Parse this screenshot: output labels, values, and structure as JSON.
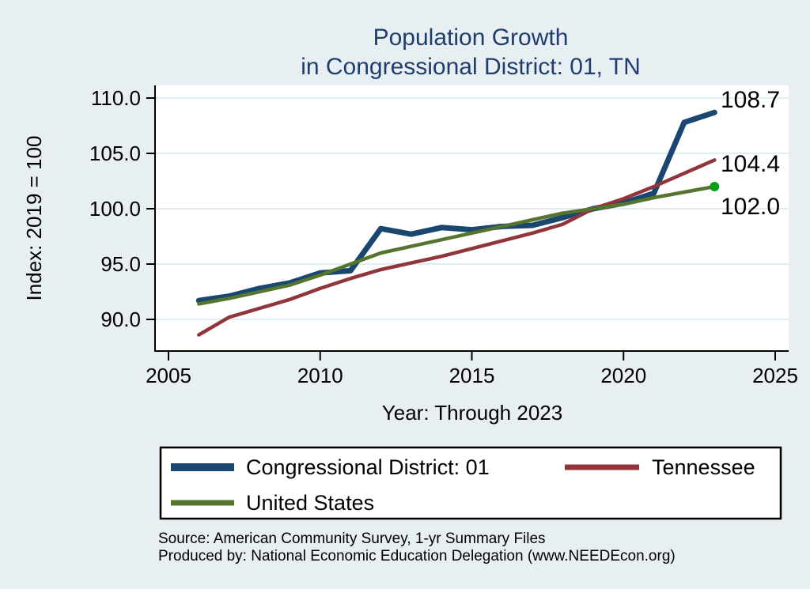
{
  "title": {
    "line1": "Population Growth",
    "line2": "in Congressional District: 01, TN"
  },
  "axes": {
    "y_title": "Index: 2019 = 100",
    "x_title": "Year: Through 2023"
  },
  "colors": {
    "page_background": "#e8eff3",
    "plot_background": "#ffffff",
    "gridline": "#e2edf3",
    "axis_line": "#000000",
    "title_text": "#1f3d6d",
    "district_line": "#1a476f",
    "tennessee_line": "#90353b",
    "us_line": "#55752f",
    "us_end_marker": "#0e9c1a"
  },
  "legend": {
    "items": [
      {
        "label": "Congressional District: 01",
        "color": "#1a476f",
        "thickness": 10
      },
      {
        "label": "Tennessee",
        "color": "#90353b",
        "thickness": 7
      },
      {
        "label": "United States",
        "color": "#55752f",
        "thickness": 7
      }
    ]
  },
  "footer": {
    "line1": "Source: American Community Survey, 1-yr Summary Files",
    "line2": "Produced by: National Economic Education Delegation (www.NEEDEcon.org)"
  },
  "chart_data": {
    "type": "line",
    "title": "Population Growth in Congressional District: 01, TN",
    "xlabel": "Year: Through 2023",
    "ylabel": "Index: 2019 = 100",
    "grid": "horizontal",
    "legend_position": "bottom",
    "xlim": [
      2004.1,
      2025.9
    ],
    "ylim": [
      87.1,
      111.1
    ],
    "xticks": [
      2005,
      2010,
      2015,
      2020,
      2025
    ],
    "xtick_labels": [
      "2005",
      "2010",
      "2015",
      "2020",
      "2025"
    ],
    "yticks": [
      110,
      105,
      100,
      95,
      90
    ],
    "ytick_labels": [
      "110.0",
      "105.0",
      "100.0",
      "95.0",
      "90.0"
    ],
    "x": [
      2006,
      2007,
      2008,
      2009,
      2010,
      2011,
      2012,
      2013,
      2014,
      2015,
      2016,
      2017,
      2018,
      2019,
      2020,
      2021,
      2022,
      2023
    ],
    "series": [
      {
        "name": "Congressional District: 01",
        "color": "#1a476f",
        "width": 7,
        "values": [
          91.7,
          92.1,
          92.8,
          93.3,
          94.2,
          94.4,
          98.2,
          97.7,
          98.3,
          98.1,
          98.4,
          98.5,
          99.2,
          100.0,
          100.5,
          101.4,
          107.8,
          108.7
        ],
        "end_label": "108.7",
        "end_label_baseline": 136
      },
      {
        "name": "Tennessee",
        "color": "#90353b",
        "width": 4.5,
        "values": [
          88.6,
          90.2,
          91.0,
          91.8,
          92.8,
          93.7,
          94.5,
          95.1,
          95.7,
          96.4,
          97.1,
          97.8,
          98.6,
          100.0,
          100.9,
          102.0,
          103.2,
          104.4
        ],
        "end_label": "104.4",
        "end_label_baseline": 217
      },
      {
        "name": "United States",
        "color": "#55752f",
        "width": 4.5,
        "values": [
          91.4,
          91.9,
          92.5,
          93.1,
          94.0,
          95.0,
          96.0,
          96.6,
          97.2,
          97.8,
          98.4,
          99.0,
          99.6,
          100.0,
          100.4,
          101.0,
          101.5,
          102.0
        ],
        "end_label": "102.0",
        "end_label_baseline": 271,
        "end_marker_color": "#0e9c1a"
      }
    ]
  }
}
